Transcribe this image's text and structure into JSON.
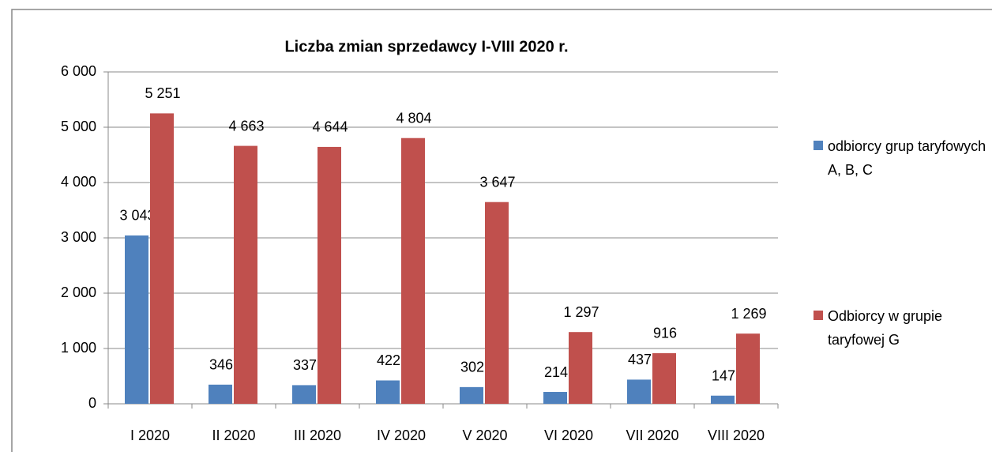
{
  "chart_data": {
    "type": "bar",
    "title": "Liczba zmian sprzedawcy I-VIII 2020 r.",
    "categories": [
      "I 2020",
      "II 2020",
      "III 2020",
      "IV 2020",
      "V 2020",
      "VI 2020",
      "VII 2020",
      "VIII 2020"
    ],
    "series": [
      {
        "name": "odbiorcy grup taryfowych A, B, C",
        "color": "#4f81bd",
        "values": [
          3043,
          346,
          337,
          422,
          302,
          214,
          437,
          147
        ],
        "value_labels": [
          "3 043",
          "346",
          "337",
          "422",
          "302",
          "214",
          "437",
          "147"
        ]
      },
      {
        "name": "Odbiorcy w grupie taryfowej G",
        "color": "#c0504d",
        "values": [
          5251,
          4663,
          4644,
          4804,
          3647,
          1297,
          916,
          1269
        ],
        "value_labels": [
          "5 251",
          "4 663",
          "4 644",
          "4 804",
          "3 647",
          "1 297",
          "916",
          "1 269"
        ]
      }
    ],
    "ylim": [
      0,
      6000
    ],
    "yticks": [
      0,
      {
        "value": 1000,
        "label": "1 000"
      },
      {
        "value": 2000,
        "label": "2 000"
      },
      {
        "value": 3000,
        "label": "3 000"
      },
      {
        "value": 4000,
        "label": "4 000"
      },
      {
        "value": 5000,
        "label": "5 000"
      },
      {
        "value": 6000,
        "label": "6 000"
      }
    ],
    "grid": true,
    "legend": "right"
  }
}
